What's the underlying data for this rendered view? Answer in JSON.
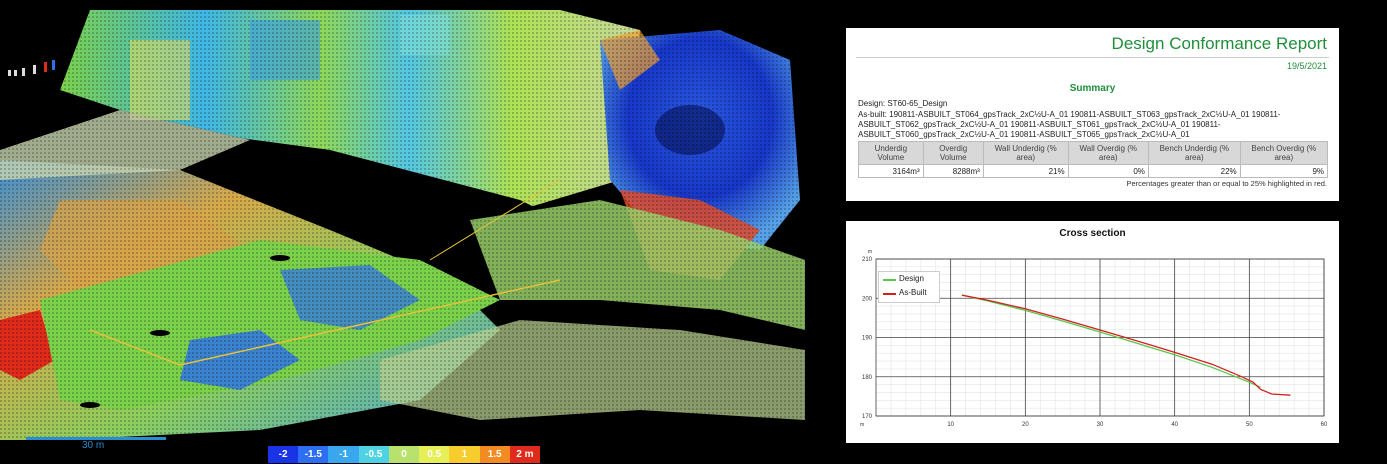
{
  "viewer": {
    "scale_label": "30 m",
    "color_legend": [
      {
        "label": "-2",
        "color": "#1a33e6"
      },
      {
        "label": "-1.5",
        "color": "#2d6ff0"
      },
      {
        "label": "-1",
        "color": "#39a7ee"
      },
      {
        "label": "-0.5",
        "color": "#4fd2e2"
      },
      {
        "label": "0",
        "color": "#b8e26d"
      },
      {
        "label": "0.5",
        "color": "#e6ef58"
      },
      {
        "label": "1",
        "color": "#f7cc2d"
      },
      {
        "label": "1.5",
        "color": "#f28c22"
      },
      {
        "label": "2 m",
        "color": "#e02a1c"
      }
    ]
  },
  "report": {
    "title": "Design Conformance Report",
    "date": "19/5/2021",
    "section": "Summary",
    "design": "Design: ST60-65_Design",
    "as_built": "As-built: 190811-ASBUILT_ST064_gpsTrack_2xC½U-A_01 190811-ASBUILT_ST063_gpsTrack_2xC½U-A_01 190811-ASBUILT_ST062_gpsTrack_2xC½U-A_01 190811-ASBUILT_ST061_gpsTrack_2xC½U-A_01 190811-ASBUILT_ST060_gpsTrack_2xC½U-A_01 190811-ASBUILT_ST065_gpsTrack_2xC½U-A_01",
    "columns": [
      "Underdig Volume",
      "Overdig Volume",
      "Wall Underdig (% area)",
      "Wall Overdig (% area)",
      "Bench Underdig (% area)",
      "Bench Overdig (% area)"
    ],
    "values": [
      "3164m³",
      "8288m³",
      "21%",
      "0%",
      "22%",
      "9%"
    ],
    "note": "Percentages greater than or equal to 25% highlighted in red."
  },
  "chart_data": {
    "type": "line",
    "title": "Cross section",
    "ylabel_unit": "m",
    "xlabel_unit": "m",
    "xlim": [
      0,
      60
    ],
    "ylim": [
      170,
      210
    ],
    "xticks": [
      10,
      20,
      30,
      40,
      50,
      60
    ],
    "yticks": [
      170,
      180,
      190,
      200,
      210
    ],
    "series": [
      {
        "name": "Design",
        "color": "#57c84a",
        "points": [
          [
            11.5,
            200.8
          ],
          [
            15,
            199.3
          ],
          [
            20,
            196.9
          ],
          [
            25,
            194.2
          ],
          [
            30,
            191.4
          ],
          [
            35,
            188.5
          ],
          [
            40,
            185.6
          ],
          [
            45,
            182.4
          ],
          [
            50,
            178.6
          ],
          [
            51.5,
            177.3
          ]
        ]
      },
      {
        "name": "As-Built",
        "color": "#d41f1f",
        "points": [
          [
            11.5,
            200.8
          ],
          [
            15,
            199.5
          ],
          [
            20,
            197.3
          ],
          [
            25,
            194.7
          ],
          [
            30,
            191.9
          ],
          [
            35,
            189.1
          ],
          [
            40,
            186.2
          ],
          [
            45,
            183.2
          ],
          [
            49,
            180.0
          ],
          [
            50.5,
            178.6
          ],
          [
            51.5,
            176.8
          ],
          [
            53,
            175.6
          ],
          [
            55.5,
            175.3
          ]
        ]
      }
    ]
  }
}
